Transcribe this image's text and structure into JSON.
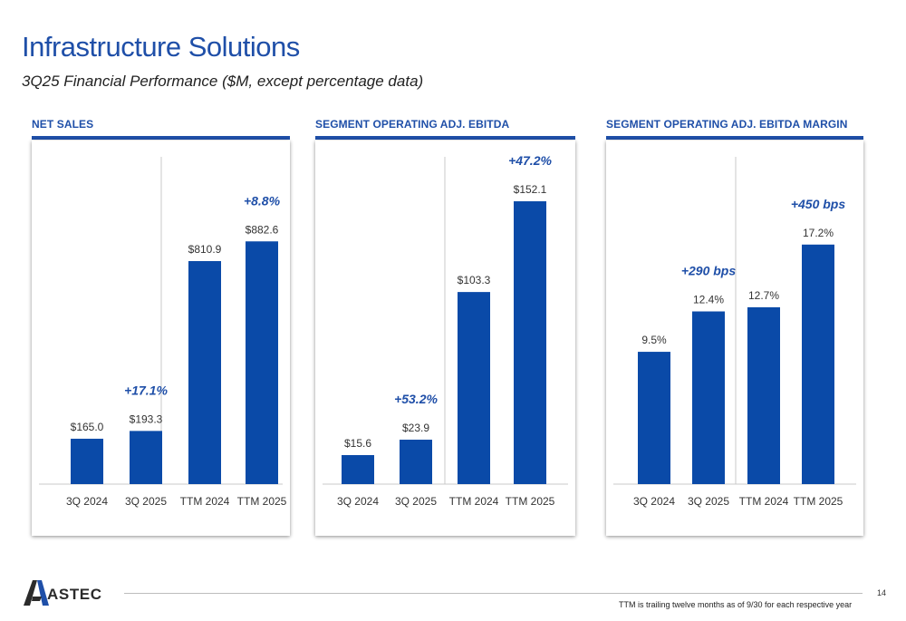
{
  "header": {
    "title": "Infrastructure Solutions",
    "subtitle": "3Q25 Financial Performance ($M, except percentage data)"
  },
  "colors": {
    "bar": "#0a4aa8",
    "accent": "#1f4fa8",
    "divider": "#c8c8c8"
  },
  "chart_data": [
    {
      "type": "bar",
      "title": "NET SALES",
      "categories": [
        "3Q 2024",
        "3Q 2025",
        "TTM 2024",
        "TTM 2025"
      ],
      "values": [
        165.0,
        193.3,
        810.9,
        882.6
      ],
      "value_labels": [
        "$165.0",
        "$193.3",
        "$810.9",
        "$882.6"
      ],
      "ylim": [
        0,
        1190
      ],
      "xlabel": "",
      "ylabel": "",
      "annotations": [
        {
          "text": "+17.1%",
          "above_category": "3Q 2025"
        },
        {
          "text": "+8.8%",
          "above_category": "TTM 2025"
        }
      ]
    },
    {
      "type": "bar",
      "title": "SEGMENT OPERATING ADJ. EBITDA",
      "categories": [
        "3Q 2024",
        "3Q 2025",
        "TTM 2024",
        "TTM 2025"
      ],
      "values": [
        15.6,
        23.9,
        103.3,
        152.1
      ],
      "value_labels": [
        "$15.6",
        "$23.9",
        "$103.3",
        "$152.1"
      ],
      "ylim": [
        0,
        176
      ],
      "xlabel": "",
      "ylabel": "",
      "annotations": [
        {
          "text": "+53.2%",
          "above_category": "3Q 2025"
        },
        {
          "text": "+47.2%",
          "above_category": "TTM 2025"
        }
      ]
    },
    {
      "type": "bar",
      "title": "SEGMENT OPERATING ADJ. EBITDA MARGIN",
      "categories": [
        "3Q 2024",
        "3Q 2025",
        "TTM 2024",
        "TTM 2025"
      ],
      "values": [
        9.5,
        12.4,
        12.7,
        17.2
      ],
      "value_labels": [
        "9.5%",
        "12.4%",
        "12.7%",
        "17.2%"
      ],
      "ylim": [
        0,
        23.5
      ],
      "xlabel": "",
      "ylabel": "",
      "annotations": [
        {
          "text": "+290 bps",
          "above_category": "3Q 2025"
        },
        {
          "text": "+450 bps",
          "above_category": "TTM 2025"
        }
      ]
    }
  ],
  "footer": {
    "brand": "ASTEC",
    "page_number": "14",
    "note": "TTM is trailing twelve months as of 9/30 for each respective year"
  }
}
